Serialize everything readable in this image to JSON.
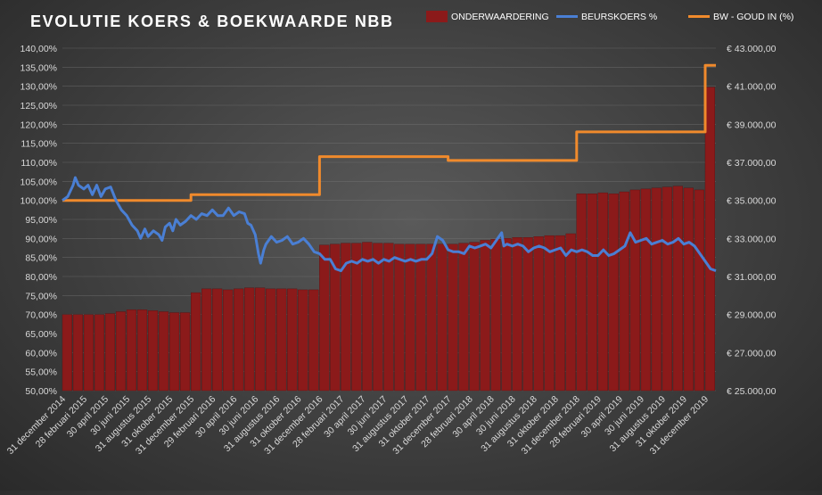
{
  "chart_data": {
    "type": "bar+line",
    "title": "EVOLUTIE  KOERS  &  BOEKWAARDE   NBB",
    "legend": {
      "placement": "top-right",
      "entries": [
        {
          "name": "ONDERWAARDERING",
          "color": "#8b1a1a",
          "kind": "bar"
        },
        {
          "name": "BEURSKOERS %",
          "color": "#4a7fd4",
          "kind": "line"
        },
        {
          "name": "BW  - GOUD IN (%)",
          "color": "#f08a2c",
          "kind": "line"
        }
      ]
    },
    "y_left": {
      "min": 50,
      "max": 140,
      "step": 5,
      "tick_labels": [
        "50,00%",
        "55,00%",
        "60,00%",
        "65,00%",
        "70,00%",
        "75,00%",
        "80,00%",
        "85,00%",
        "90,00%",
        "95,00%",
        "100,00%",
        "105,00%",
        "110,00%",
        "115,00%",
        "120,00%",
        "125,00%",
        "130,00%",
        "135,00%",
        "140,00%"
      ]
    },
    "y_right": {
      "min": 25000,
      "max": 43000,
      "step": 2000,
      "tick_labels": [
        "€ 25.000,00",
        "€ 27.000,00",
        "€ 29.000,00",
        "€ 31.000,00",
        "€ 33.000,00",
        "€ 35.000,00",
        "€ 37.000,00",
        "€ 39.000,00",
        "€ 41.000,00",
        "€ 43.000,00"
      ]
    },
    "x_tick_labels": [
      "31 december 2014",
      "28 februari 2015",
      "30 april 2015",
      "30 juni 2015",
      "31 augustus 2015",
      "31 oktober 2015",
      "31 december 2015",
      "29 februari 2016",
      "30 april 2016",
      "30 juni 2016",
      "31 augustus 2016",
      "31 oktober 2016",
      "31 december 2016",
      "28 februari 2017",
      "30 april 2017",
      "30 juni 2017",
      "31 augustus 2017",
      "31 oktober 2017",
      "31 december 2017",
      "28 februari 2018",
      "30 april 2018",
      "30 juni 2018",
      "31 augustus 2018",
      "31 oktober 2018",
      "31 december 2018",
      "28 februari 2019",
      "30 april 2019",
      "30 juni 2019",
      "31 augustus 2019",
      "31 oktober 2019",
      "31 december 2019"
    ],
    "x_range_months": [
      0,
      61
    ],
    "onderwaardering_series": {
      "name": "ONDERWAARDERING",
      "axis": "right",
      "months": [
        0,
        1,
        2,
        3,
        4,
        5,
        6,
        7,
        8,
        9,
        10,
        11,
        12,
        13,
        14,
        15,
        16,
        17,
        18,
        19,
        20,
        21,
        22,
        23,
        24,
        25,
        26,
        27,
        28,
        29,
        30,
        31,
        32,
        33,
        34,
        35,
        36,
        37,
        38,
        39,
        40,
        41,
        42,
        43,
        44,
        45,
        46,
        47,
        48,
        49,
        50,
        51,
        52,
        53,
        54,
        55,
        56,
        57,
        58,
        59,
        60
      ],
      "values": [
        29000,
        29000,
        29000,
        29000,
        29050,
        29150,
        29250,
        29250,
        29200,
        29150,
        29100,
        29100,
        30150,
        30350,
        30350,
        30300,
        30350,
        30400,
        30400,
        30350,
        30350,
        30350,
        30300,
        30300,
        32650,
        32700,
        32750,
        32750,
        32800,
        32750,
        32750,
        32700,
        32700,
        32700,
        32700,
        32700,
        32700,
        32750,
        32800,
        32900,
        32950,
        33000,
        33050,
        33050,
        33100,
        33150,
        33150,
        33250,
        35350,
        35350,
        35400,
        35350,
        35450,
        35550,
        35600,
        35650,
        35700,
        35750,
        35650,
        35550,
        40950
      ]
    },
    "bw_series": {
      "name": "BW  - GOUD IN (%)",
      "axis": "left",
      "points": [
        [
          0,
          100
        ],
        [
          12,
          100
        ],
        [
          12,
          101.5
        ],
        [
          24,
          101.5
        ],
        [
          24,
          111.5
        ],
        [
          36,
          111.5
        ],
        [
          36,
          110.5
        ],
        [
          48,
          110.5
        ],
        [
          48,
          118
        ],
        [
          60,
          118
        ],
        [
          60,
          135.5
        ],
        [
          61,
          135.5
        ]
      ]
    },
    "beurskoers_series": {
      "name": "BEURSKOERS %",
      "axis": "left",
      "points": [
        [
          0,
          100
        ],
        [
          0.5,
          101
        ],
        [
          1,
          104
        ],
        [
          1.2,
          106
        ],
        [
          1.5,
          104
        ],
        [
          2,
          103
        ],
        [
          2.4,
          104
        ],
        [
          2.8,
          101.5
        ],
        [
          3.2,
          104
        ],
        [
          3.6,
          101
        ],
        [
          4,
          103
        ],
        [
          4.5,
          103.5
        ],
        [
          5,
          100
        ],
        [
          5.5,
          97.5
        ],
        [
          6,
          96
        ],
        [
          6.5,
          93.5
        ],
        [
          7,
          92
        ],
        [
          7.3,
          90
        ],
        [
          7.7,
          92.5
        ],
        [
          8,
          90.5
        ],
        [
          8.5,
          92
        ],
        [
          9,
          91
        ],
        [
          9.3,
          89.5
        ],
        [
          9.6,
          93
        ],
        [
          10,
          94
        ],
        [
          10.3,
          92
        ],
        [
          10.6,
          95
        ],
        [
          11,
          93.5
        ],
        [
          11.5,
          94.5
        ],
        [
          12,
          96
        ],
        [
          12.5,
          95
        ],
        [
          13,
          96.5
        ],
        [
          13.5,
          96
        ],
        [
          14,
          97.5
        ],
        [
          14.5,
          96
        ],
        [
          15,
          96
        ],
        [
          15.5,
          98
        ],
        [
          16,
          96
        ],
        [
          16.5,
          97
        ],
        [
          17,
          96.5
        ],
        [
          17.3,
          94
        ],
        [
          17.6,
          93.5
        ],
        [
          18,
          91
        ],
        [
          18.3,
          86
        ],
        [
          18.5,
          83.5
        ],
        [
          18.8,
          87
        ],
        [
          19,
          88.5
        ],
        [
          19.5,
          90.5
        ],
        [
          20,
          89
        ],
        [
          20.5,
          89.5
        ],
        [
          21,
          90.5
        ],
        [
          21.5,
          88.5
        ],
        [
          22,
          89
        ],
        [
          22.5,
          90
        ],
        [
          23,
          88.5
        ],
        [
          23.5,
          86.5
        ],
        [
          24,
          86
        ],
        [
          24.5,
          84.5
        ],
        [
          25,
          84.5
        ],
        [
          25.5,
          82
        ],
        [
          26,
          81.5
        ],
        [
          26.5,
          83.5
        ],
        [
          27,
          84
        ],
        [
          27.5,
          83.5
        ],
        [
          28,
          84.5
        ],
        [
          28.5,
          84
        ],
        [
          29,
          84.5
        ],
        [
          29.5,
          83.5
        ],
        [
          30,
          84.5
        ],
        [
          30.5,
          84
        ],
        [
          31,
          85
        ],
        [
          31.5,
          84.5
        ],
        [
          32,
          84
        ],
        [
          32.5,
          84.5
        ],
        [
          33,
          84
        ],
        [
          33.5,
          84.5
        ],
        [
          34,
          84.5
        ],
        [
          34.5,
          86
        ],
        [
          35,
          90.5
        ],
        [
          35.5,
          89.5
        ],
        [
          36,
          87
        ],
        [
          36.5,
          86.5
        ],
        [
          37,
          86.5
        ],
        [
          37.5,
          86
        ],
        [
          38,
          88
        ],
        [
          38.5,
          87.5
        ],
        [
          39,
          88
        ],
        [
          39.5,
          88.5
        ],
        [
          40,
          87.5
        ],
        [
          40.5,
          89.5
        ],
        [
          41,
          91.5
        ],
        [
          41.2,
          88
        ],
        [
          41.5,
          88.5
        ],
        [
          42,
          88
        ],
        [
          42.5,
          88.5
        ],
        [
          43,
          88
        ],
        [
          43.5,
          86.5
        ],
        [
          44,
          87.5
        ],
        [
          44.5,
          88
        ],
        [
          45,
          87.5
        ],
        [
          45.5,
          86.5
        ],
        [
          46,
          87
        ],
        [
          46.5,
          87.5
        ],
        [
          47,
          85.5
        ],
        [
          47.5,
          87
        ],
        [
          48,
          86.5
        ],
        [
          48.5,
          87
        ],
        [
          49,
          86.5
        ],
        [
          49.5,
          85.5
        ],
        [
          50,
          85.5
        ],
        [
          50.5,
          87
        ],
        [
          51,
          85.5
        ],
        [
          51.5,
          86
        ],
        [
          52,
          87
        ],
        [
          52.5,
          88
        ],
        [
          53,
          91.5
        ],
        [
          53.5,
          89
        ],
        [
          54,
          89.5
        ],
        [
          54.5,
          90
        ],
        [
          55,
          88.5
        ],
        [
          55.5,
          89
        ],
        [
          56,
          89.5
        ],
        [
          56.5,
          88.5
        ],
        [
          57,
          89
        ],
        [
          57.5,
          90
        ],
        [
          58,
          88.5
        ],
        [
          58.5,
          89
        ],
        [
          59,
          88
        ],
        [
          59.5,
          86
        ],
        [
          60,
          84
        ],
        [
          60.5,
          82
        ],
        [
          61,
          81.5
        ]
      ]
    }
  }
}
